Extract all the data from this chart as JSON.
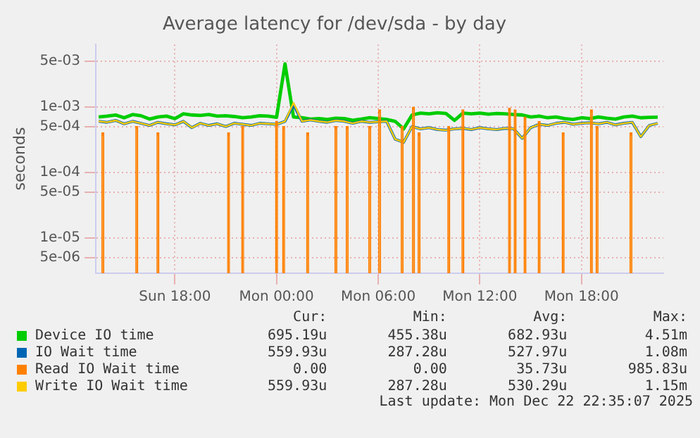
{
  "chart_data": {
    "type": "line",
    "title": "Average latency for /dev/sda - by day",
    "ylabel": "seconds",
    "log": "y",
    "grid": true,
    "legend": "bottom",
    "x": [
      "2025-12-21T13:30",
      "2025-12-21T14:00",
      "2025-12-21T14:30",
      "2025-12-21T15:00",
      "2025-12-21T15:30",
      "2025-12-21T16:00",
      "2025-12-21T16:30",
      "2025-12-21T17:00",
      "2025-12-21T17:30",
      "2025-12-21T18:00",
      "2025-12-21T18:30",
      "2025-12-21T19:00",
      "2025-12-21T19:30",
      "2025-12-21T20:00",
      "2025-12-21T20:30",
      "2025-12-21T21:00",
      "2025-12-21T21:30",
      "2025-12-21T22:00",
      "2025-12-21T22:30",
      "2025-12-21T23:00",
      "2025-12-21T23:30",
      "2025-12-22T00:00",
      "2025-12-22T00:30",
      "2025-12-22T01:00",
      "2025-12-22T01:30",
      "2025-12-22T02:00",
      "2025-12-22T02:30",
      "2025-12-22T03:00",
      "2025-12-22T03:30",
      "2025-12-22T04:00",
      "2025-12-22T04:30",
      "2025-12-22T05:00",
      "2025-12-22T05:30",
      "2025-12-22T06:00",
      "2025-12-22T06:30",
      "2025-12-22T07:00",
      "2025-12-22T07:30",
      "2025-12-22T08:00",
      "2025-12-22T08:30",
      "2025-12-22T09:00",
      "2025-12-22T09:30",
      "2025-12-22T10:00",
      "2025-12-22T10:30",
      "2025-12-22T11:00",
      "2025-12-22T11:30",
      "2025-12-22T12:00",
      "2025-12-22T12:30",
      "2025-12-22T13:00",
      "2025-12-22T13:30",
      "2025-12-22T14:00",
      "2025-12-22T14:30",
      "2025-12-22T15:00",
      "2025-12-22T15:30",
      "2025-12-22T16:00",
      "2025-12-22T16:30",
      "2025-12-22T17:00",
      "2025-12-22T17:30",
      "2025-12-22T18:00",
      "2025-12-22T18:30",
      "2025-12-22T19:00",
      "2025-12-22T19:30",
      "2025-12-22T20:00",
      "2025-12-22T20:30",
      "2025-12-22T21:00",
      "2025-12-22T21:30",
      "2025-12-22T22:00",
      "2025-12-22T22:30"
    ],
    "xlim": [
      "2025-12-21T13:20",
      "2025-12-22T22:50"
    ],
    "xticks": [
      {
        "value": "2025-12-21T18:00",
        "label": "Sun 18:00"
      },
      {
        "value": "2025-12-22T00:00",
        "label": "Mon 00:00"
      },
      {
        "value": "2025-12-22T06:00",
        "label": "Mon 06:00"
      },
      {
        "value": "2025-12-22T12:00",
        "label": "Mon 12:00"
      },
      {
        "value": "2025-12-22T18:00",
        "label": "Mon 18:00"
      }
    ],
    "ylim": [
      2.9e-06,
      0.0089
    ],
    "yticks": [
      {
        "value": 5e-06,
        "label": "5e-06"
      },
      {
        "value": 1e-05,
        "label": "1e-05"
      },
      {
        "value": 5e-05,
        "label": "5e-05"
      },
      {
        "value": 0.0001,
        "label": "1e-04"
      },
      {
        "value": 0.0005,
        "label": "5e-04"
      },
      {
        "value": 0.001,
        "label": "1e-03"
      },
      {
        "value": 0.005,
        "label": "5e-03"
      }
    ],
    "series": [
      {
        "name": "Device IO time",
        "color": "#00cc00",
        "values": [
          0.0007,
          0.00072,
          0.00075,
          0.00068,
          0.00076,
          0.00073,
          0.00065,
          0.0007,
          0.00072,
          0.00066,
          0.00078,
          0.00075,
          0.00074,
          0.00076,
          0.00072,
          0.00073,
          0.00071,
          0.00068,
          0.0007,
          0.00073,
          0.00072,
          0.00069,
          0.00451,
          0.0007,
          0.00068,
          0.00065,
          0.00066,
          0.00064,
          0.00067,
          0.00066,
          0.00062,
          0.00065,
          0.00068,
          0.00066,
          0.00064,
          0.0006,
          0.00046,
          0.00075,
          0.0008,
          0.00078,
          0.00081,
          0.00079,
          0.00062,
          0.0008,
          0.00078,
          0.0008,
          0.00077,
          0.00079,
          0.00078,
          0.00076,
          0.00075,
          0.0007,
          0.00072,
          0.00068,
          0.0007,
          0.00066,
          0.00064,
          0.00068,
          0.00066,
          0.0007,
          0.00067,
          0.00065,
          0.0007,
          0.00072,
          0.00068,
          0.00069,
          0.000695
        ]
      },
      {
        "name": "IO Wait time",
        "color": "#0066b3",
        "values": [
          0.0006,
          0.00058,
          0.00062,
          0.00055,
          0.0006,
          0.00056,
          0.00052,
          0.00058,
          0.00055,
          0.00053,
          0.0006,
          0.00048,
          0.00056,
          0.00052,
          0.00055,
          0.0005,
          0.00056,
          0.00054,
          0.00052,
          0.00056,
          0.00055,
          0.00054,
          0.0006,
          0.00108,
          0.0006,
          0.00063,
          0.0006,
          0.00058,
          0.00062,
          0.0006,
          0.00056,
          0.0006,
          0.00058,
          0.00059,
          0.0006,
          0.00032,
          0.000287,
          0.0005,
          0.00046,
          0.00048,
          0.00045,
          0.00044,
          0.00046,
          0.00047,
          0.00045,
          0.00048,
          0.00046,
          0.00045,
          0.00047,
          0.00046,
          0.00033,
          0.00048,
          0.00054,
          0.00052,
          0.00056,
          0.00058,
          0.00054,
          0.00056,
          0.00057,
          0.00055,
          0.00058,
          0.00053,
          0.00056,
          0.00058,
          0.00035,
          0.00052,
          0.00056
        ]
      },
      {
        "name": "Read IO Wait time",
        "color": "#ff8000",
        "type": "bar",
        "x": [
          "2025-12-21T13:45",
          "2025-12-21T15:45",
          "2025-12-21T17:00",
          "2025-12-21T21:10",
          "2025-12-21T22:00",
          "2025-12-22T00:00",
          "2025-12-22T00:25",
          "2025-12-22T01:50",
          "2025-12-22T03:30",
          "2025-12-22T04:10",
          "2025-12-22T05:30",
          "2025-12-22T06:05",
          "2025-12-22T07:25",
          "2025-12-22T08:05",
          "2025-12-22T08:25",
          "2025-12-22T10:10",
          "2025-12-22T11:00",
          "2025-12-22T13:45",
          "2025-12-22T14:05",
          "2025-12-22T14:40",
          "2025-12-22T15:30",
          "2025-12-22T16:55",
          "2025-12-22T18:35",
          "2025-12-22T18:55",
          "2025-12-22T20:55"
        ],
        "values": [
          0.0004,
          0.0005,
          0.0004,
          0.0004,
          0.0005,
          0.0006,
          0.0005,
          0.0004,
          0.0005,
          0.0005,
          0.0005,
          0.0009,
          0.0005,
          0.000986,
          0.0004,
          0.0005,
          0.0009,
          0.00095,
          0.0009,
          0.0007,
          0.0006,
          0.0004,
          0.0009,
          0.0005,
          0.0004
        ]
      },
      {
        "name": "Write IO Wait time",
        "color": "#ffcc00",
        "values": [
          0.0006,
          0.00058,
          0.00062,
          0.00055,
          0.0006,
          0.00056,
          0.00052,
          0.00058,
          0.00055,
          0.00053,
          0.0006,
          0.00048,
          0.00056,
          0.00052,
          0.00055,
          0.0005,
          0.00056,
          0.00054,
          0.00052,
          0.00056,
          0.00055,
          0.00054,
          0.0006,
          0.00115,
          0.0006,
          0.00063,
          0.0006,
          0.00058,
          0.00062,
          0.0006,
          0.00056,
          0.0006,
          0.00058,
          0.00059,
          0.0006,
          0.00032,
          0.000287,
          0.0005,
          0.00046,
          0.00048,
          0.00045,
          0.00044,
          0.00046,
          0.00047,
          0.00045,
          0.00048,
          0.00046,
          0.00045,
          0.00047,
          0.00046,
          0.00033,
          0.00048,
          0.00054,
          0.00052,
          0.00056,
          0.00058,
          0.00054,
          0.00056,
          0.00057,
          0.00055,
          0.00058,
          0.00053,
          0.00056,
          0.00058,
          0.00035,
          0.00052,
          0.00056
        ]
      }
    ],
    "annotations": [
      "Cur:",
      "Min:",
      "Avg:",
      "Max:",
      "695.19u",
      "455.38u",
      "682.93u",
      "4.51m",
      "559.93u",
      "287.28u",
      "527.97u",
      "1.08m",
      "0.00",
      "0.00",
      "35.73u",
      "985.83u",
      "559.93u",
      "287.28u",
      "530.29u",
      "1.15m",
      "Last update: Mon Dec 22 22:35:07 2025"
    ]
  }
}
